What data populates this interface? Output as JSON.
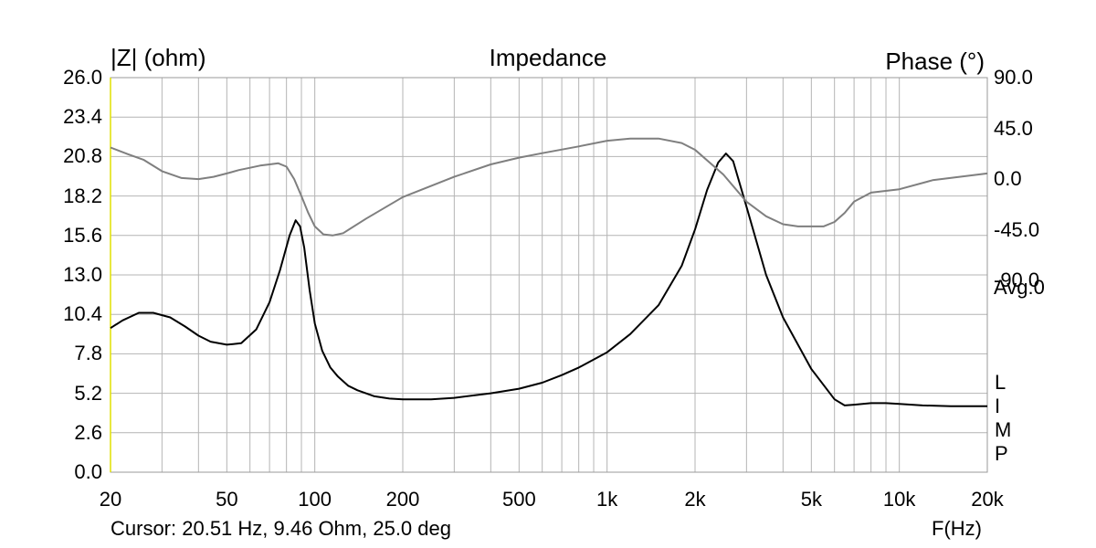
{
  "chart_data": {
    "type": "line",
    "title": "Impedance",
    "ylabel": "|Z| (ohm)",
    "y2label": "Phase (°)",
    "xlabel": "F(Hz)",
    "x_scale": "log",
    "xlim": [
      20,
      20000
    ],
    "ylim": [
      0,
      26
    ],
    "y2lim": [
      -260,
      90
    ],
    "grid": true,
    "x_ticks": [
      {
        "v": 20,
        "label": "20"
      },
      {
        "v": 50,
        "label": "50"
      },
      {
        "v": 100,
        "label": "100"
      },
      {
        "v": 200,
        "label": "200"
      },
      {
        "v": 500,
        "label": "500"
      },
      {
        "v": 1000,
        "label": "1k"
      },
      {
        "v": 2000,
        "label": "2k"
      },
      {
        "v": 5000,
        "label": "5k"
      },
      {
        "v": 10000,
        "label": "10k"
      },
      {
        "v": 20000,
        "label": "20k"
      }
    ],
    "y_ticks": [
      "26.0",
      "23.4",
      "20.8",
      "18.2",
      "15.6",
      "13.0",
      "10.4",
      "7.8",
      "5.2",
      "2.6",
      "0.0"
    ],
    "y2_ticks": [
      "90.0",
      "45.0",
      "0.0",
      "-45.0",
      "-90.0"
    ],
    "series": [
      {
        "axis": "left",
        "color": "#000000",
        "x": [
          20,
          22,
          25,
          28,
          32,
          36,
          40,
          44,
          50,
          56,
          63,
          70,
          76,
          82,
          86,
          89,
          92,
          96,
          100,
          106,
          113,
          120,
          130,
          140,
          160,
          180,
          200,
          250,
          300,
          400,
          500,
          600,
          700,
          800,
          1000,
          1200,
          1500,
          1800,
          2000,
          2200,
          2400,
          2550,
          2700,
          3000,
          3500,
          4000,
          5000,
          6000,
          6500,
          7000,
          8000,
          9000,
          10000,
          12000,
          15000,
          20000
        ],
        "y": [
          9.5,
          10.0,
          10.5,
          10.5,
          10.2,
          9.6,
          9.0,
          8.6,
          8.4,
          8.5,
          9.4,
          11.2,
          13.3,
          15.6,
          16.6,
          16.2,
          14.8,
          12.0,
          9.8,
          8.0,
          6.9,
          6.3,
          5.7,
          5.4,
          5.0,
          4.85,
          4.8,
          4.8,
          4.9,
          5.2,
          5.5,
          5.9,
          6.4,
          6.9,
          7.9,
          9.1,
          11.0,
          13.6,
          16.0,
          18.6,
          20.4,
          21.0,
          20.5,
          17.5,
          13.0,
          10.2,
          6.8,
          4.8,
          4.4,
          4.45,
          4.55,
          4.55,
          4.5,
          4.4,
          4.35,
          4.35
        ]
      },
      {
        "axis": "right",
        "color": "#7f7f7f",
        "x": [
          20,
          23,
          26,
          30,
          35,
          40,
          45,
          50,
          55,
          60,
          65,
          70,
          75,
          80,
          85,
          90,
          95,
          100,
          107,
          115,
          125,
          150,
          200,
          300,
          400,
          500,
          600,
          800,
          1000,
          1200,
          1500,
          1800,
          2000,
          2500,
          3000,
          3500,
          4000,
          4500,
          5000,
          5500,
          6000,
          6500,
          7000,
          8000,
          10000,
          13000,
          20000
        ],
        "y": [
          28,
          22,
          17,
          7,
          1,
          0,
          2,
          5,
          8,
          10,
          12,
          13,
          14,
          11,
          0,
          -15,
          -30,
          -42,
          -49,
          -50,
          -48,
          -35,
          -16,
          2,
          13,
          19,
          23,
          29,
          34,
          36,
          36,
          32,
          26,
          4,
          -20,
          -33,
          -40,
          -42,
          -42,
          -42,
          -38,
          -30,
          -20,
          -12,
          -9,
          -1,
          5
        ]
      }
    ]
  },
  "labels": {
    "title": "Impedance",
    "ylabel": "|Z| (ohm)",
    "y2label": "Phase (°)",
    "xunit": "F(Hz)",
    "cursor": "Cursor: 20.51 Hz, 9.46 Ohm, 25.0 deg",
    "avg": "Avg:0",
    "limp": [
      "L",
      "I",
      "M",
      "P"
    ]
  }
}
